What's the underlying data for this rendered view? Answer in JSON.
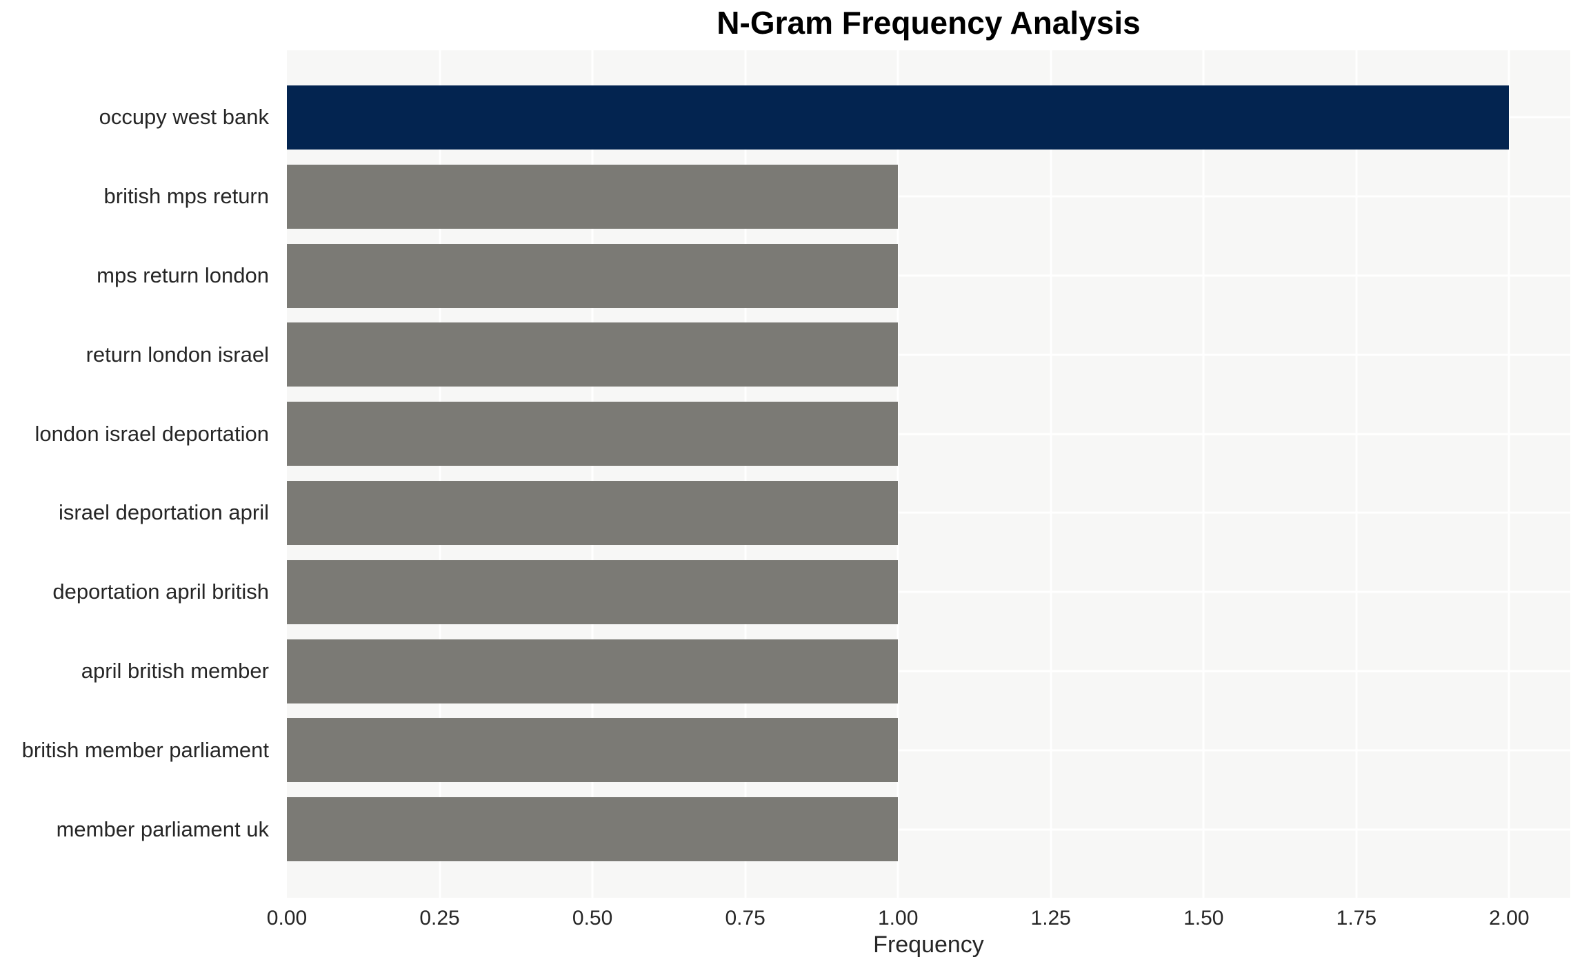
{
  "chart_data": {
    "type": "bar",
    "orientation": "horizontal",
    "title": "N-Gram Frequency Analysis",
    "xlabel": "Frequency",
    "ylabel": "",
    "categories": [
      "occupy west bank",
      "british mps return",
      "mps return london",
      "return london israel",
      "london israel deportation",
      "israel deportation april",
      "deportation april british",
      "april british member",
      "british member parliament",
      "member parliament uk"
    ],
    "values": [
      2,
      1,
      1,
      1,
      1,
      1,
      1,
      1,
      1,
      1
    ],
    "xlim": [
      0,
      2.1
    ],
    "xticks": [
      0.0,
      0.25,
      0.5,
      0.75,
      1.0,
      1.25,
      1.5,
      1.75,
      2.0
    ],
    "xtick_labels": [
      "0.00",
      "0.25",
      "0.50",
      "0.75",
      "1.00",
      "1.25",
      "1.50",
      "1.75",
      "2.00"
    ],
    "grid": true,
    "legend": false,
    "bar_colors": [
      "#032450",
      "#7b7a75",
      "#7b7a75",
      "#7b7a75",
      "#7b7a75",
      "#7b7a75",
      "#7b7a75",
      "#7b7a75",
      "#7b7a75",
      "#7b7a75"
    ],
    "colors": {
      "highlight_bar": "#032450",
      "default_bar": "#7b7a75",
      "plot_background": "#f7f7f6",
      "grid_line": "#ffffff",
      "tick_text": "#262626",
      "title_text": "#000000"
    }
  }
}
